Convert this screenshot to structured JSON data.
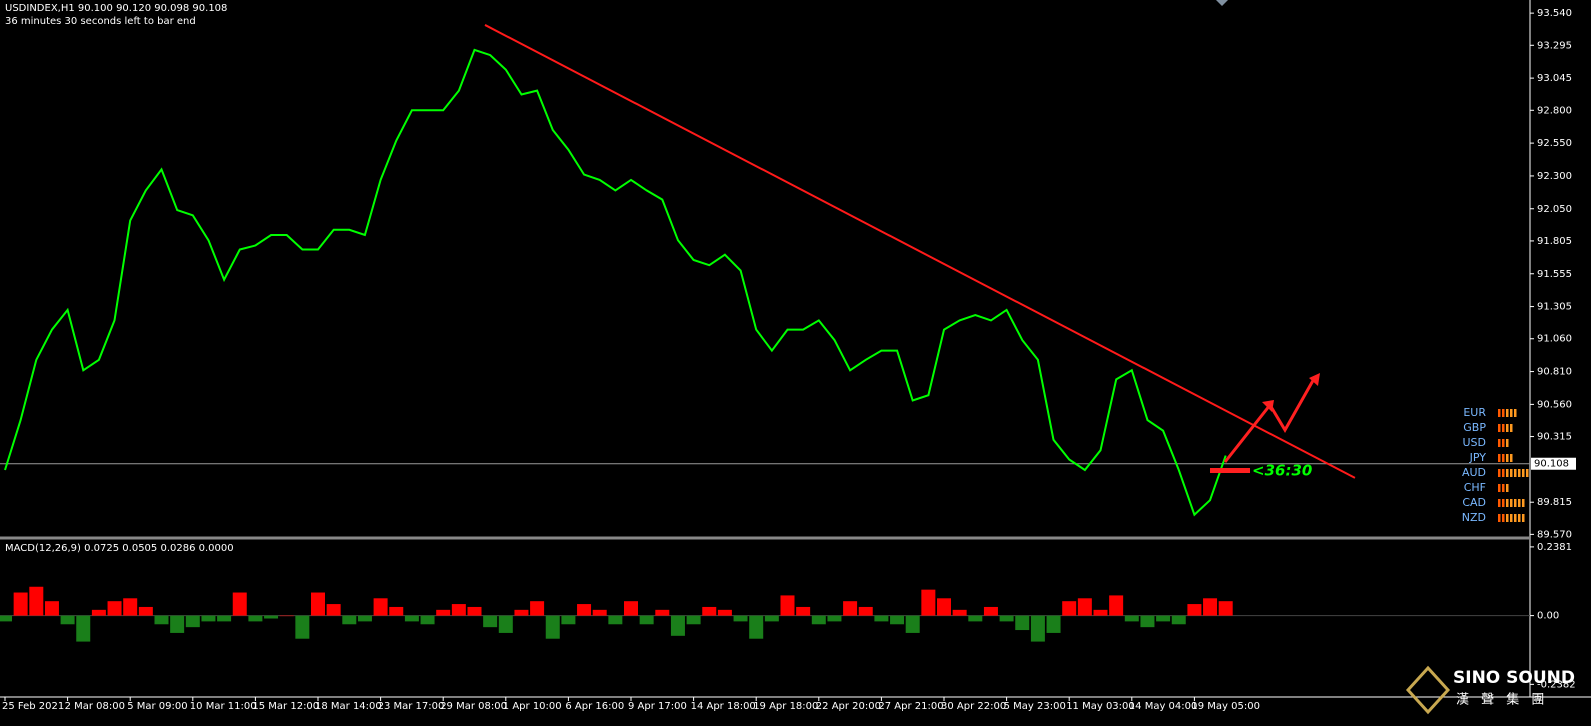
{
  "chart_data": {
    "type": "line",
    "header": "USDINDEX,H1  90.100 90.120 90.098 90.108",
    "timer_note": "36 minutes 30 seconds left to bar end",
    "categories": [
      "25 Feb 2021",
      null,
      null,
      null,
      "2 Mar 08:00",
      null,
      null,
      null,
      "5 Mar 09:00",
      null,
      null,
      null,
      "10 Mar 11:00",
      null,
      null,
      null,
      "15 Mar 12:00",
      null,
      null,
      null,
      "18 Mar 14:00",
      null,
      null,
      null,
      "23 Mar 17:00",
      null,
      null,
      null,
      "29 Mar 08:00",
      null,
      null,
      null,
      "1 Apr 10:00",
      null,
      null,
      null,
      "6 Apr 16:00",
      null,
      null,
      null,
      "9 Apr 17:00",
      null,
      null,
      null,
      "14 Apr 18:00",
      null,
      null,
      null,
      "19 Apr 18:00",
      null,
      null,
      null,
      "22 Apr 20:00",
      null,
      null,
      null,
      "27 Apr 21:00",
      null,
      null,
      null,
      "30 Apr 22:00",
      null,
      null,
      null,
      "5 May 23:00",
      null,
      null,
      null,
      "11 May 03:00",
      null,
      null,
      null,
      "14 May 04:00",
      null,
      null,
      null,
      "19 May 05:00",
      null,
      null
    ],
    "series": [
      {
        "name": "USDINDEX,H1",
        "color": "#00ff00",
        "values": [
          90.06,
          90.44,
          90.9,
          91.13,
          91.28,
          90.82,
          90.9,
          91.2,
          91.96,
          92.19,
          92.35,
          92.04,
          92.0,
          91.81,
          91.51,
          91.74,
          91.77,
          91.85,
          91.85,
          91.74,
          91.74,
          91.89,
          91.89,
          91.85,
          92.27,
          92.57,
          92.8,
          92.8,
          92.8,
          92.95,
          93.26,
          93.22,
          93.11,
          92.92,
          92.95,
          92.65,
          92.5,
          92.31,
          92.27,
          92.19,
          92.27,
          92.19,
          92.12,
          91.81,
          91.66,
          91.62,
          91.7,
          91.58,
          91.13,
          90.97,
          91.13,
          91.13,
          91.2,
          91.05,
          90.82,
          90.9,
          90.97,
          90.97,
          90.59,
          90.63,
          91.13,
          91.2,
          91.24,
          91.2,
          91.28,
          91.05,
          90.9,
          90.29,
          90.14,
          90.06,
          90.21,
          90.75,
          90.82,
          90.44,
          90.36,
          90.06,
          89.72,
          89.83,
          90.17
        ]
      }
    ],
    "ylim": [
      89.55,
      93.64
    ],
    "yticks": [
      {
        "value": 93.54,
        "label": "93.540"
      },
      {
        "value": 93.295,
        "label": "93.295"
      },
      {
        "value": 93.045,
        "label": "93.045"
      },
      {
        "value": 92.8,
        "label": "92.800"
      },
      {
        "value": 92.55,
        "label": "92.550"
      },
      {
        "value": 92.3,
        "label": "92.300"
      },
      {
        "value": 92.05,
        "label": "92.050"
      },
      {
        "value": 91.805,
        "label": "91.805"
      },
      {
        "value": 91.555,
        "label": "91.555"
      },
      {
        "value": 91.305,
        "label": "91.305"
      },
      {
        "value": 91.06,
        "label": "91.060"
      },
      {
        "value": 90.81,
        "label": "90.810"
      },
      {
        "value": 90.56,
        "label": "90.560"
      },
      {
        "value": 90.315,
        "label": "90.315"
      },
      {
        "value": 89.815,
        "label": "89.815"
      },
      {
        "value": 89.57,
        "label": "89.570"
      }
    ],
    "current_price": 90.108,
    "trendline": {
      "x": [
        30.67,
        86.26
      ],
      "y": [
        93.45,
        90.0
      ],
      "color": "#ff1a1a"
    },
    "timer": "<36:30",
    "currency_strength": {
      "names": [
        "EUR",
        "GBP",
        "USD",
        "JPY",
        "AUD",
        "CHF",
        "CAD",
        "NZD"
      ],
      "values": [
        5,
        4,
        3,
        4,
        8,
        3,
        7,
        7
      ]
    },
    "macd": {
      "label": "MACD(12,26,9) 0.0725 0.0505 0.0286 0.0000",
      "up_color": "#ff0000",
      "down_color": "#1a7f1a",
      "values": [
        -0.02,
        0.08,
        0.1,
        0.05,
        -0.03,
        -0.09,
        0.02,
        0.05,
        0.06,
        0.03,
        -0.03,
        -0.06,
        -0.04,
        -0.02,
        -0.02,
        0.08,
        -0.02,
        -0.01,
        0.0,
        -0.08,
        0.08,
        0.04,
        -0.03,
        -0.02,
        0.06,
        0.03,
        -0.02,
        -0.03,
        0.02,
        0.04,
        0.03,
        -0.04,
        -0.06,
        0.02,
        0.05,
        -0.08,
        -0.03,
        0.04,
        0.02,
        -0.03,
        0.05,
        -0.03,
        0.02,
        -0.07,
        -0.03,
        0.03,
        0.02,
        -0.02,
        -0.08,
        -0.02,
        0.07,
        0.03,
        -0.03,
        -0.02,
        0.05,
        0.03,
        -0.02,
        -0.03,
        -0.06,
        0.09,
        0.06,
        0.02,
        -0.02,
        0.03,
        -0.02,
        -0.05,
        -0.09,
        -0.06,
        0.05,
        0.06,
        0.02,
        0.07,
        -0.02,
        -0.04,
        -0.02,
        -0.03,
        0.04,
        0.06,
        0.05
      ],
      "ylim": [
        -0.282,
        0.262
      ],
      "yticks": [
        0.2381,
        {
          "value": 0,
          "label": "0.00"
        },
        -0.2382
      ]
    },
    "brand": {
      "name": "SINO SOUND",
      "sub": "漢 聲 集 團"
    }
  }
}
